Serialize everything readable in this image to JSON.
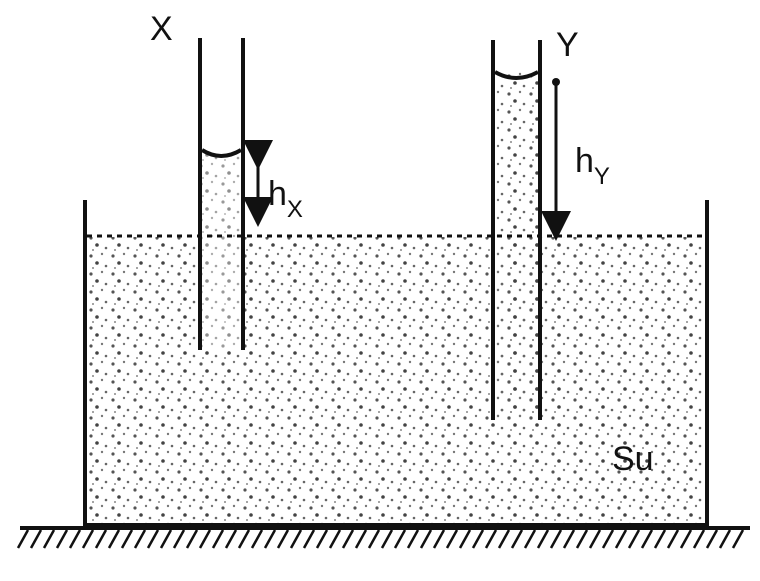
{
  "labels": {
    "tube_x": "X",
    "tube_y": "Y",
    "h_x": "h",
    "h_x_sub": "X",
    "h_y": "h",
    "h_y_sub": "Y",
    "liquid": "Su"
  }
}
